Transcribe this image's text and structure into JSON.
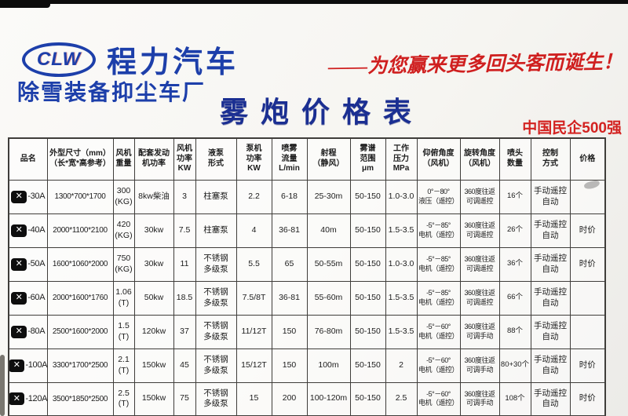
{
  "header": {
    "logo_text": "CLW",
    "brand": "程力汽车",
    "sub_brand": "除雪装备抑尘车厂",
    "slogan": "——为您赢来更多回头客而诞生！",
    "title": "雾炮价格表",
    "badge": "中国民企500强"
  },
  "colors": {
    "brand_blue": "#1d3faa",
    "title_blue": "#1b2f92",
    "accent_red": "#d32220",
    "table_border": "#3f3d3a"
  },
  "table": {
    "columns": [
      "品名",
      "外型尺寸（mm）\n（长*宽*高参考）",
      "风机\n重量",
      "配套发动\n机功率",
      "风机\n功率\nKW",
      "液泵\n形式",
      "泵机\n功率\nKW",
      "喷雾\n流量\nL/min",
      "射程\n（静风）",
      "雾谱\n范围\nμm",
      "工作\n压力\nMPa",
      "仰俯角度\n（风机）",
      "旋转角度\n（风机）",
      "喷头\n数量",
      "控制\n方式",
      "价格"
    ],
    "brand_mark_glyph": "✕",
    "rows": [
      {
        "model": "-30A",
        "cells": [
          "1300*700*1700",
          "300\n(KG)",
          "8kw柴油",
          "3",
          "柱塞泵",
          "2.2",
          "6-18",
          "25-30m",
          "50-150",
          "1.0-3.0",
          "0°－80°\n液压（遥控）",
          "360度往返\n可调遥控",
          "16个",
          "手动遥控\n自动",
          ""
        ]
      },
      {
        "model": "-40A",
        "cells": [
          "2000*1100*2100",
          "420\n(KG)",
          "30kw",
          "7.5",
          "柱塞泵",
          "4",
          "36-81",
          "40m",
          "50-150",
          "1.5-3.5",
          "-5°－85°\n电机（遥控）",
          "360度往返\n可调遥控",
          "26个",
          "手动遥控\n自动",
          "时价"
        ]
      },
      {
        "model": "-50A",
        "cells": [
          "1600*1060*2000",
          "750\n(KG)",
          "30kw",
          "11",
          "不锈钢\n多级泵",
          "5.5",
          "65",
          "50-55m",
          "50-150",
          "1.0-3.0",
          "-5°－85°\n电机（遥控）",
          "360度往返\n可调遥控",
          "36个",
          "手动遥控\n自动",
          "时价"
        ]
      },
      {
        "model": "-60A",
        "cells": [
          "2000*1600*1760",
          "1.06\n(T)",
          "50kw",
          "18.5",
          "不锈钢\n多级泵",
          "7.5/8T",
          "36-81",
          "55-60m",
          "50-150",
          "1.5-3.5",
          "-5°－85°\n电机（遥控）",
          "360度往返\n可调遥控",
          "66个",
          "手动遥控\n自动",
          ""
        ]
      },
      {
        "model": "-80A",
        "cells": [
          "2500*1600*2000",
          "1.5\n(T)",
          "120kw",
          "37",
          "不锈钢\n多级泵",
          "11/12T",
          "150",
          "76-80m",
          "50-150",
          "1.5-3.5",
          "-5°－60°\n电机（遥控）",
          "360度往返\n可调手动",
          "88个",
          "手动遥控\n自动",
          ""
        ]
      },
      {
        "model": "-100A",
        "cells": [
          "3300*1700*2500",
          "2.1\n(T)",
          "150kw",
          "45",
          "不锈钢\n多级泵",
          "15/12T",
          "150",
          "100m",
          "50-150",
          "2",
          "-5°－60°\n电机（遥控）",
          "360度往返\n可调手动",
          "80+30个",
          "手动遥控\n自动",
          "时价"
        ]
      },
      {
        "model": "-120A",
        "cells": [
          "3500*1850*2500",
          "2.5\n(T)",
          "150kw",
          "75",
          "不锈钢\n多级泵",
          "15",
          "200",
          "100-120m",
          "50-150",
          "2.5",
          "-5°－60°\n电机（遥控）",
          "360度往返\n可调手动",
          "108个",
          "手动遥控\n自动",
          "时价"
        ]
      }
    ]
  }
}
